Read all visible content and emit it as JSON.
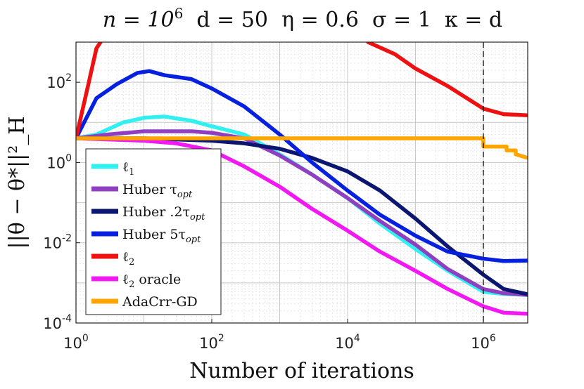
{
  "chart_data": {
    "type": "line",
    "title_parts": [
      "n = 10",
      "6",
      "  d = 50  η = 0.6  σ = 1  κ = d"
    ],
    "title": "n = 10^6 d = 50 η = 0.6 σ = 1 κ = d",
    "xlabel": "Number of iterations",
    "ylabel": "||θ − θ*||²_H",
    "xscale": "log",
    "yscale": "log",
    "xlim": [
      1,
      4500000
    ],
    "ylim": [
      0.0001,
      1000
    ],
    "xticks": [
      {
        "base": "10",
        "exp": "0",
        "value": 1
      },
      {
        "base": "10",
        "exp": "2",
        "value": 100
      },
      {
        "base": "10",
        "exp": "4",
        "value": 10000
      },
      {
        "base": "10",
        "exp": "6",
        "value": 1000000
      }
    ],
    "yticks": [
      {
        "base": "10",
        "exp": "-4",
        "value": 0.0001
      },
      {
        "base": "10",
        "exp": "-2",
        "value": 0.01
      },
      {
        "base": "10",
        "exp": "0",
        "value": 1
      },
      {
        "base": "10",
        "exp": "2",
        "value": 100
      }
    ],
    "grid": true,
    "vline": 1000000,
    "legend_position": "bottom-left",
    "series": [
      {
        "name": "ℓ1",
        "label_base": "ℓ",
        "label_sub": "1",
        "color": "#33f0f0",
        "points": [
          [
            1,
            4
          ],
          [
            2,
            5
          ],
          [
            5,
            10
          ],
          [
            10,
            13
          ],
          [
            20,
            14
          ],
          [
            50,
            11
          ],
          [
            100,
            8
          ],
          [
            300,
            5
          ],
          [
            1000,
            1.6
          ],
          [
            3000,
            0.5
          ],
          [
            10000,
            0.13
          ],
          [
            30000,
            0.03
          ],
          [
            100000,
            0.007
          ],
          [
            300000,
            0.002
          ],
          [
            1000000,
            0.0006
          ],
          [
            2000000,
            0.00053
          ],
          [
            4500000,
            0.0005
          ]
        ]
      },
      {
        "name": "Huber τopt",
        "label_base": "Huber τ",
        "label_sub": "opt",
        "color": "#8f3fc0",
        "points": [
          [
            1,
            4
          ],
          [
            3,
            5
          ],
          [
            10,
            6
          ],
          [
            50,
            6
          ],
          [
            100,
            5.5
          ],
          [
            300,
            4
          ],
          [
            1000,
            1.5
          ],
          [
            3000,
            0.5
          ],
          [
            10000,
            0.13
          ],
          [
            30000,
            0.035
          ],
          [
            100000,
            0.009
          ],
          [
            300000,
            0.0022
          ],
          [
            1000000,
            0.0007
          ],
          [
            2000000,
            0.00055
          ],
          [
            4500000,
            0.0005
          ]
        ]
      },
      {
        "name": "Huber .2τopt",
        "label_base": "Huber .2τ",
        "label_sub": "opt",
        "color": "#0a1670",
        "points": [
          [
            1,
            4
          ],
          [
            10,
            4
          ],
          [
            100,
            3.5
          ],
          [
            300,
            3
          ],
          [
            1000,
            2.2
          ],
          [
            3000,
            1.3
          ],
          [
            10000,
            0.6
          ],
          [
            30000,
            0.2
          ],
          [
            100000,
            0.04
          ],
          [
            300000,
            0.008
          ],
          [
            1000000,
            0.0016
          ],
          [
            2000000,
            0.0007
          ],
          [
            4500000,
            0.00052
          ]
        ]
      },
      {
        "name": "Huber 5τopt",
        "label_base": "Huber 5τ",
        "label_sub": "opt",
        "color": "#0620e0",
        "points": [
          [
            1,
            4
          ],
          [
            2,
            40
          ],
          [
            4,
            90
          ],
          [
            8,
            170
          ],
          [
            12,
            190
          ],
          [
            20,
            150
          ],
          [
            50,
            120
          ],
          [
            100,
            70
          ],
          [
            300,
            25
          ],
          [
            1000,
            5
          ],
          [
            3000,
            1
          ],
          [
            10000,
            0.2
          ],
          [
            30000,
            0.05
          ],
          [
            100000,
            0.015
          ],
          [
            300000,
            0.006
          ],
          [
            1000000,
            0.004
          ],
          [
            2000000,
            0.0035
          ],
          [
            4500000,
            0.0036
          ]
        ]
      },
      {
        "name": "ℓ2",
        "label_base": "ℓ",
        "label_sub": "2",
        "color": "#ee1111",
        "points": [
          [
            1,
            4
          ],
          [
            1.5,
            80
          ],
          [
            2,
            700
          ],
          [
            2.3,
            1000
          ]
        ],
        "points2": [
          [
            20000,
            1000
          ],
          [
            50000,
            500
          ],
          [
            100000,
            220
          ],
          [
            300000,
            80
          ],
          [
            1000000,
            22
          ],
          [
            2000000,
            16
          ],
          [
            4500000,
            15
          ]
        ]
      },
      {
        "name": "ℓ2 oracle",
        "label_base": "ℓ",
        "label_sub": "2",
        "label_rest": " oracle",
        "color": "#f218f2",
        "points": [
          [
            1,
            4
          ],
          [
            10,
            3.5
          ],
          [
            30,
            3
          ],
          [
            100,
            2
          ],
          [
            300,
            0.8
          ],
          [
            1000,
            0.25
          ],
          [
            3000,
            0.07
          ],
          [
            10000,
            0.02
          ],
          [
            30000,
            0.006
          ],
          [
            100000,
            0.002
          ],
          [
            300000,
            0.0007
          ],
          [
            1000000,
            0.00026
          ],
          [
            2000000,
            0.00018
          ],
          [
            4500000,
            0.00017
          ]
        ]
      },
      {
        "name": "AdaCrr-GD",
        "label_base": "AdaCrr-GD",
        "label_sub": "",
        "color": "#ffa500",
        "step": true,
        "points": [
          [
            1,
            4
          ],
          [
            1000000,
            4
          ],
          [
            1000000,
            2.5
          ],
          [
            2200000,
            2.5
          ],
          [
            2200000,
            2
          ],
          [
            3000000,
            2
          ],
          [
            3000000,
            1.6
          ],
          [
            4500000,
            1.3
          ]
        ]
      }
    ]
  }
}
